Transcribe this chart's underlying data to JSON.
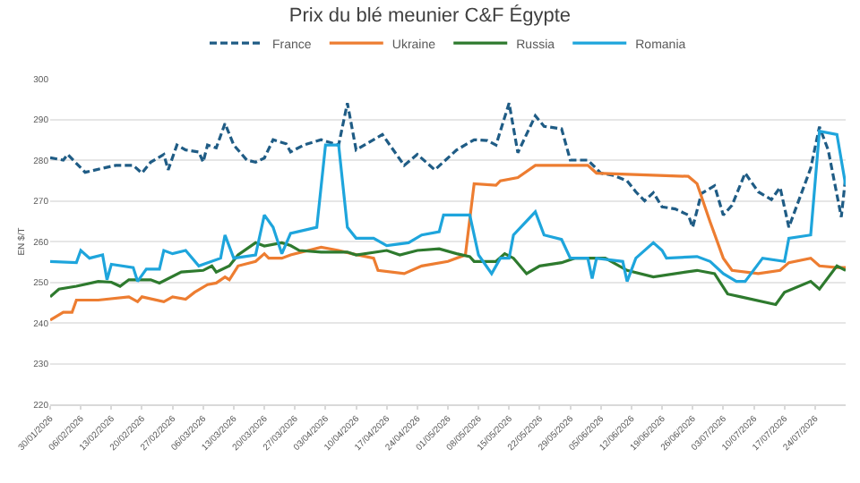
{
  "chart_data": {
    "type": "line",
    "title": "Prix du blé meunier C&F Égypte",
    "ylabel": "EN $/T",
    "ylim": [
      220,
      300
    ],
    "yticks": [
      220,
      230,
      240,
      250,
      260,
      270,
      280,
      290,
      300
    ],
    "xlim": [
      "2026-01-30",
      "2026-07-31"
    ],
    "xticks": [
      {
        "value": "2026-01-30",
        "label": "30/01/2026"
      },
      {
        "value": "2026-02-06",
        "label": "06/02/2026"
      },
      {
        "value": "2026-02-13",
        "label": "13/02/2026"
      },
      {
        "value": "2026-02-20",
        "label": "20/02/2026"
      },
      {
        "value": "2026-02-27",
        "label": "27/02/2026"
      },
      {
        "value": "2026-03-06",
        "label": "06/03/2026"
      },
      {
        "value": "2026-03-13",
        "label": "13/03/2026"
      },
      {
        "value": "2026-03-20",
        "label": "20/03/2026"
      },
      {
        "value": "2026-03-27",
        "label": "27/03/2026"
      },
      {
        "value": "2026-04-03",
        "label": "03/04/2026"
      },
      {
        "value": "2026-04-10",
        "label": "10/04/2026"
      },
      {
        "value": "2026-04-17",
        "label": "17/04/2026"
      },
      {
        "value": "2026-04-24",
        "label": "24/04/2026"
      },
      {
        "value": "2026-05-01",
        "label": "01/05/2026"
      },
      {
        "value": "2026-05-08",
        "label": "08/05/2026"
      },
      {
        "value": "2026-05-15",
        "label": "15/05/2026"
      },
      {
        "value": "2026-05-22",
        "label": "22/05/2026"
      },
      {
        "value": "2026-05-29",
        "label": "29/05/2026"
      },
      {
        "value": "2026-06-05",
        "label": "05/06/2026"
      },
      {
        "value": "2026-06-12",
        "label": "12/06/2026"
      },
      {
        "value": "2026-06-19",
        "label": "19/06/2026"
      },
      {
        "value": "2026-06-26",
        "label": "26/06/2026"
      },
      {
        "value": "2026-07-03",
        "label": "03/07/2026"
      },
      {
        "value": "2026-07-10",
        "label": "10/07/2026"
      },
      {
        "value": "2026-07-17",
        "label": "17/07/2026"
      },
      {
        "value": "2026-07-24",
        "label": "24/07/2026"
      }
    ],
    "grid": "y",
    "legend": "top",
    "marker": "none",
    "series": [
      {
        "name": "France",
        "color": "#1f5c85",
        "line_style": "dashed",
        "x": [
          "2026-01-30",
          "2026-02-02",
          "2026-02-03",
          "2026-02-07",
          "2026-02-11",
          "2026-02-14",
          "2026-02-18",
          "2026-02-20",
          "2026-02-22",
          "2026-02-25",
          "2026-02-26",
          "2026-02-28",
          "2026-03-02",
          "2026-03-05",
          "2026-03-06",
          "2026-03-07",
          "2026-03-09",
          "2026-03-11",
          "2026-03-13",
          "2026-03-16",
          "2026-03-18",
          "2026-03-20",
          "2026-03-22",
          "2026-03-25",
          "2026-03-26",
          "2026-03-29",
          "2026-04-02",
          "2026-04-06",
          "2026-04-08",
          "2026-04-10",
          "2026-04-16",
          "2026-04-21",
          "2026-04-24",
          "2026-04-28",
          "2026-05-03",
          "2026-05-07",
          "2026-05-10",
          "2026-05-12",
          "2026-05-15",
          "2026-05-17",
          "2026-05-21",
          "2026-05-23",
          "2026-05-27",
          "2026-05-29",
          "2026-06-02",
          "2026-06-05",
          "2026-06-08",
          "2026-06-11",
          "2026-06-13",
          "2026-06-15",
          "2026-06-17",
          "2026-06-19",
          "2026-06-22",
          "2026-06-25",
          "2026-06-26",
          "2026-06-28",
          "2026-07-01",
          "2026-07-03",
          "2026-07-05",
          "2026-07-08",
          "2026-07-11",
          "2026-07-14",
          "2026-07-16",
          "2026-07-18",
          "2026-07-23",
          "2026-07-25",
          "2026-07-27",
          "2026-07-30",
          "2026-07-31"
        ],
        "values": [
          280.6,
          280,
          281.4,
          277,
          278,
          278.7,
          278.7,
          276.8,
          279.5,
          281.4,
          277.6,
          283.7,
          282.5,
          282,
          279.5,
          283.7,
          283,
          289,
          283.7,
          280,
          279.5,
          280.5,
          285,
          284,
          282,
          283.7,
          285,
          283.7,
          294,
          282.5,
          286.3,
          278.7,
          281.4,
          277.6,
          282.5,
          285,
          284.8,
          283.7,
          294,
          281.8,
          290.9,
          288.3,
          287.7,
          280,
          280,
          276.8,
          276.2,
          274.9,
          272.2,
          270,
          272,
          268.5,
          268,
          266.5,
          263.5,
          271.8,
          273.7,
          266.5,
          268.9,
          276.8,
          272.2,
          270.3,
          273.3,
          263.5,
          278,
          288.2,
          282.5,
          266,
          276
        ]
      },
      {
        "name": "Ukraine",
        "color": "#ed7d31",
        "line_style": "solid",
        "x": [
          "2026-01-30",
          "2026-02-02",
          "2026-02-04",
          "2026-02-05",
          "2026-02-10",
          "2026-02-17",
          "2026-02-19",
          "2026-02-20",
          "2026-02-25",
          "2026-02-27",
          "2026-03-02",
          "2026-03-04",
          "2026-03-07",
          "2026-03-09",
          "2026-03-11",
          "2026-03-12",
          "2026-03-14",
          "2026-03-18",
          "2026-03-20",
          "2026-03-21",
          "2026-03-24",
          "2026-03-26",
          "2026-04-02",
          "2026-04-06",
          "2026-04-09",
          "2026-04-14",
          "2026-04-15",
          "2026-04-21",
          "2026-04-25",
          "2026-05-01",
          "2026-05-05",
          "2026-05-07",
          "2026-05-12",
          "2026-05-13",
          "2026-05-17",
          "2026-05-21",
          "2026-06-02",
          "2026-06-04",
          "2026-06-25",
          "2026-06-27",
          "2026-06-30",
          "2026-07-03",
          "2026-07-05",
          "2026-07-11",
          "2026-07-16",
          "2026-07-18",
          "2026-07-23",
          "2026-07-25",
          "2026-07-29",
          "2026-07-31"
        ],
        "values": [
          240.7,
          242.6,
          242.6,
          245.6,
          245.6,
          246.4,
          245.2,
          246.4,
          245.2,
          246.4,
          245.8,
          247.5,
          249.4,
          249.8,
          251.3,
          250.6,
          254,
          255.1,
          257,
          255.9,
          255.9,
          256.7,
          258.6,
          257.8,
          257,
          255.9,
          252.9,
          252.1,
          254,
          255.1,
          256.7,
          274.2,
          273.8,
          274.9,
          275.7,
          278.7,
          278.7,
          276.8,
          276,
          274.2,
          264.8,
          255.9,
          252.9,
          252.1,
          252.9,
          254.8,
          255.9,
          254,
          253.6,
          253.6
        ]
      },
      {
        "name": "Russia",
        "color": "#2e7a2e",
        "line_style": "solid",
        "x": [
          "2026-01-30",
          "2026-02-01",
          "2026-02-05",
          "2026-02-10",
          "2026-02-13",
          "2026-02-15",
          "2026-02-17",
          "2026-02-22",
          "2026-02-24",
          "2026-03-01",
          "2026-03-06",
          "2026-03-08",
          "2026-03-09",
          "2026-03-12",
          "2026-03-14",
          "2026-03-18",
          "2026-03-20",
          "2026-03-24",
          "2026-03-26",
          "2026-03-28",
          "2026-04-02",
          "2026-04-08",
          "2026-04-10",
          "2026-04-17",
          "2026-04-20",
          "2026-04-24",
          "2026-04-29",
          "2026-05-03",
          "2026-05-06",
          "2026-05-07",
          "2026-05-12",
          "2026-05-14",
          "2026-05-16",
          "2026-05-19",
          "2026-05-22",
          "2026-05-27",
          "2026-05-30",
          "2026-06-06",
          "2026-06-11",
          "2026-06-17",
          "2026-06-27",
          "2026-07-01",
          "2026-07-04",
          "2026-07-07",
          "2026-07-15",
          "2026-07-17",
          "2026-07-23",
          "2026-07-25",
          "2026-07-29",
          "2026-07-31"
        ],
        "values": [
          246.4,
          248.3,
          249,
          250.2,
          250,
          249,
          250.6,
          250.6,
          249.8,
          252.5,
          252.9,
          254,
          252.5,
          254,
          256.7,
          259.7,
          258.9,
          259.7,
          259,
          257.8,
          257.4,
          257.4,
          256.7,
          257.8,
          256.7,
          257.8,
          258.2,
          257,
          256.3,
          255.1,
          255.1,
          257,
          255.9,
          252.1,
          254,
          254.8,
          255.9,
          255.9,
          252.9,
          251.3,
          252.9,
          252.1,
          247.1,
          246.4,
          244.5,
          247.5,
          250.2,
          248.3,
          254,
          252.9
        ]
      },
      {
        "name": "Romania",
        "color": "#1ea5dc",
        "line_style": "solid",
        "x": [
          "2026-01-30",
          "2026-02-05",
          "2026-02-06",
          "2026-02-08",
          "2026-02-11",
          "2026-02-12",
          "2026-02-13",
          "2026-02-18",
          "2026-02-19",
          "2026-02-21",
          "2026-02-24",
          "2026-02-25",
          "2026-02-27",
          "2026-03-02",
          "2026-03-05",
          "2026-03-10",
          "2026-03-11",
          "2026-03-13",
          "2026-03-18",
          "2026-03-20",
          "2026-03-22",
          "2026-03-24",
          "2026-03-26",
          "2026-04-01",
          "2026-04-03",
          "2026-04-06",
          "2026-04-08",
          "2026-04-10",
          "2026-04-14",
          "2026-04-17",
          "2026-04-22",
          "2026-04-25",
          "2026-04-29",
          "2026-04-30",
          "2026-05-06",
          "2026-05-08",
          "2026-05-11",
          "2026-05-13",
          "2026-05-15",
          "2026-05-16",
          "2026-05-21",
          "2026-05-23",
          "2026-05-27",
          "2026-05-29",
          "2026-06-02",
          "2026-06-03",
          "2026-06-04",
          "2026-06-10",
          "2026-06-11",
          "2026-06-13",
          "2026-06-17",
          "2026-06-19",
          "2026-06-20",
          "2026-06-27",
          "2026-06-30",
          "2026-07-03",
          "2026-07-06",
          "2026-07-08",
          "2026-07-12",
          "2026-07-17",
          "2026-07-18",
          "2026-07-23",
          "2026-07-25",
          "2026-07-29",
          "2026-07-31"
        ],
        "values": [
          255.1,
          254.8,
          257.8,
          255.9,
          256.7,
          250.6,
          254.4,
          253.6,
          250.2,
          253.2,
          253.2,
          257.8,
          257,
          257.8,
          254,
          255.9,
          261.6,
          255.9,
          256.7,
          266.5,
          263.5,
          257,
          262,
          263.5,
          283.7,
          283.7,
          263.5,
          260.8,
          260.8,
          259,
          259.7,
          261.6,
          262.4,
          266.5,
          266.5,
          256.7,
          252.1,
          255.9,
          255.9,
          261.6,
          267.3,
          261.6,
          260.5,
          255.9,
          255.9,
          250.9,
          255.9,
          255.1,
          250.2,
          255.9,
          259.7,
          257.8,
          255.9,
          256.3,
          255.1,
          252.1,
          250.2,
          250.2,
          255.9,
          255.1,
          260.8,
          261.6,
          287.1,
          286.3,
          273.8
        ]
      }
    ]
  }
}
